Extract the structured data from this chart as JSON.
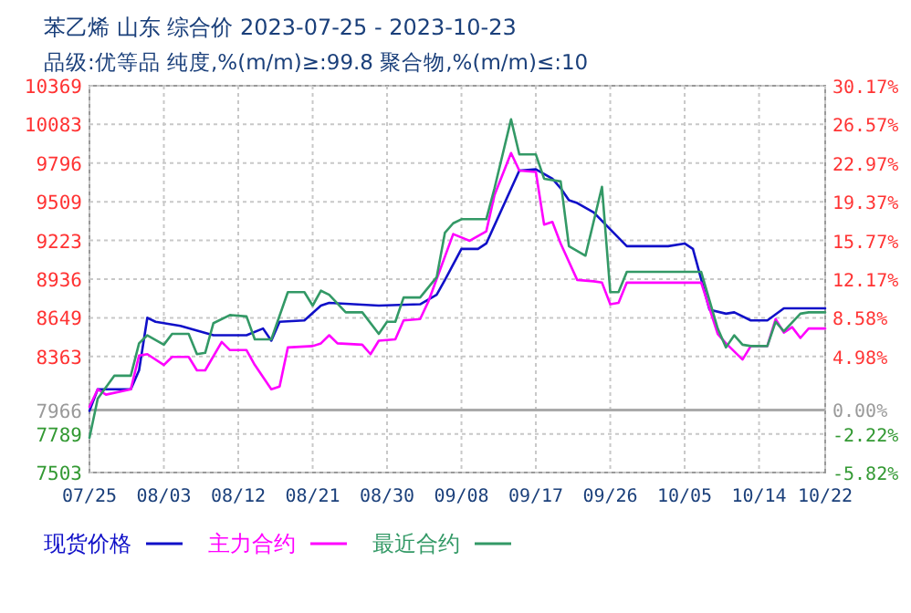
{
  "chart_data": {
    "type": "line",
    "title": "苯乙烯 山东 综合价 2023-07-25 - 2023-10-23",
    "subtitle": "品级:优等品 纯度,%(m/m)≥:99.8 聚合物,%(m/m)≤:10",
    "xlim": [
      "2023-07-25",
      "2023-10-22"
    ],
    "xticks": [
      {
        "value": "2023-07-25",
        "label": "07/25"
      },
      {
        "value": "2023-08-03",
        "label": "08/03"
      },
      {
        "value": "2023-08-12",
        "label": "08/12"
      },
      {
        "value": "2023-08-21",
        "label": "08/21"
      },
      {
        "value": "2023-08-30",
        "label": "08/30"
      },
      {
        "value": "2023-09-08",
        "label": "09/08"
      },
      {
        "value": "2023-09-17",
        "label": "09/17"
      },
      {
        "value": "2023-09-26",
        "label": "09/26"
      },
      {
        "value": "2023-10-05",
        "label": "10/05"
      },
      {
        "value": "2023-10-14",
        "label": "10/14"
      },
      {
        "value": "2023-10-22",
        "label": "10/22"
      }
    ],
    "ylim": [
      7503,
      10369
    ],
    "yticks": [
      7503,
      7789,
      7966,
      8363,
      8649,
      8936,
      9223,
      9509,
      9796,
      10083,
      10369
    ],
    "y2lim": [
      -5.82,
      30.17
    ],
    "y2ticks": [
      {
        "value": -5.82,
        "label": "-5.82%"
      },
      {
        "value": -2.22,
        "label": "-2.22%"
      },
      {
        "value": 0,
        "label": "0.00%"
      },
      {
        "value": 4.98,
        "label": "4.98%"
      },
      {
        "value": 8.58,
        "label": "8.58%"
      },
      {
        "value": 12.17,
        "label": "12.17%"
      },
      {
        "value": 15.77,
        "label": "15.77%"
      },
      {
        "value": 19.37,
        "label": "19.37%"
      },
      {
        "value": 22.97,
        "label": "22.97%"
      },
      {
        "value": 26.57,
        "label": "26.57%"
      },
      {
        "value": 30.17,
        "label": "30.17%"
      }
    ],
    "ref_lines": [
      {
        "axis": "y",
        "value": 7966,
        "color": "#aaaaaa"
      }
    ],
    "grid": true,
    "legend": "bottom",
    "line_style": "solid",
    "marker": "none",
    "series": [
      {
        "name": "现货价格",
        "color": "#1010c8",
        "x": [
          "2023-07-25",
          "2023-07-26",
          "2023-07-30",
          "2023-07-31",
          "2023-08-01",
          "2023-08-02",
          "2023-08-05",
          "2023-08-09",
          "2023-08-13",
          "2023-08-15",
          "2023-08-16",
          "2023-08-17",
          "2023-08-20",
          "2023-08-22",
          "2023-08-23",
          "2023-08-29",
          "2023-09-03",
          "2023-09-05",
          "2023-09-06",
          "2023-09-08",
          "2023-09-10",
          "2023-09-11",
          "2023-09-15",
          "2023-09-17",
          "2023-09-19",
          "2023-09-20",
          "2023-09-21",
          "2023-09-22",
          "2023-09-24",
          "2023-09-28",
          "2023-10-03",
          "2023-10-05",
          "2023-10-06",
          "2023-10-08",
          "2023-10-10",
          "2023-10-11",
          "2023-10-13",
          "2023-10-15",
          "2023-10-17",
          "2023-10-22"
        ],
        "values": [
          7960,
          8120,
          8120,
          8260,
          8650,
          8620,
          8590,
          8520,
          8520,
          8570,
          8480,
          8620,
          8630,
          8740,
          8760,
          8740,
          8750,
          8820,
          8930,
          9160,
          9160,
          9200,
          9740,
          9750,
          9680,
          9610,
          9520,
          9500,
          9430,
          9180,
          9180,
          9200,
          9160,
          8710,
          8680,
          8690,
          8630,
          8630,
          8720,
          8720
        ]
      },
      {
        "name": "主力合约",
        "color": "#ff00ff",
        "x": [
          "2023-07-25",
          "2023-07-26",
          "2023-07-27",
          "2023-07-30",
          "2023-07-31",
          "2023-08-01",
          "2023-08-03",
          "2023-08-04",
          "2023-08-06",
          "2023-08-07",
          "2023-08-08",
          "2023-08-10",
          "2023-08-11",
          "2023-08-13",
          "2023-08-14",
          "2023-08-16",
          "2023-08-17",
          "2023-08-18",
          "2023-08-21",
          "2023-08-22",
          "2023-08-23",
          "2023-08-24",
          "2023-08-27",
          "2023-08-28",
          "2023-08-29",
          "2023-08-31",
          "2023-09-01",
          "2023-09-03",
          "2023-09-04",
          "2023-09-07",
          "2023-09-09",
          "2023-09-11",
          "2023-09-12",
          "2023-09-14",
          "2023-09-15",
          "2023-09-17",
          "2023-09-18",
          "2023-09-19",
          "2023-09-20",
          "2023-09-22",
          "2023-09-24",
          "2023-09-25",
          "2023-09-26",
          "2023-09-27",
          "2023-09-28",
          "2023-10-07",
          "2023-10-09",
          "2023-10-10",
          "2023-10-12",
          "2023-10-13",
          "2023-10-15",
          "2023-10-16",
          "2023-10-17",
          "2023-10-18",
          "2023-10-19",
          "2023-10-20",
          "2023-10-22"
        ],
        "values": [
          7990,
          8120,
          8080,
          8120,
          8370,
          8380,
          8300,
          8360,
          8360,
          8260,
          8260,
          8470,
          8410,
          8410,
          8300,
          8120,
          8140,
          8430,
          8440,
          8460,
          8520,
          8460,
          8450,
          8380,
          8480,
          8490,
          8630,
          8640,
          8770,
          9270,
          9220,
          9290,
          9560,
          9870,
          9740,
          9730,
          9340,
          9360,
          9200,
          8930,
          8920,
          8910,
          8750,
          8760,
          8910,
          8910,
          8530,
          8460,
          8340,
          8440,
          8440,
          8640,
          8540,
          8580,
          8500,
          8570,
          8570
        ]
      },
      {
        "name": "最近合约",
        "color": "#339966",
        "x": [
          "2023-07-25",
          "2023-07-26",
          "2023-07-28",
          "2023-07-30",
          "2023-07-31",
          "2023-08-01",
          "2023-08-03",
          "2023-08-04",
          "2023-08-06",
          "2023-08-07",
          "2023-08-08",
          "2023-08-09",
          "2023-08-11",
          "2023-08-13",
          "2023-08-14",
          "2023-08-16",
          "2023-08-18",
          "2023-08-20",
          "2023-08-21",
          "2023-08-22",
          "2023-08-23",
          "2023-08-25",
          "2023-08-27",
          "2023-08-29",
          "2023-08-30",
          "2023-08-31",
          "2023-09-01",
          "2023-09-03",
          "2023-09-05",
          "2023-09-06",
          "2023-09-07",
          "2023-09-08",
          "2023-09-11",
          "2023-09-12",
          "2023-09-14",
          "2023-09-15",
          "2023-09-17",
          "2023-09-18",
          "2023-09-20",
          "2023-09-21",
          "2023-09-23",
          "2023-09-25",
          "2023-09-26",
          "2023-09-27",
          "2023-09-28",
          "2023-10-07",
          "2023-10-09",
          "2023-10-10",
          "2023-10-11",
          "2023-10-12",
          "2023-10-13",
          "2023-10-15",
          "2023-10-16",
          "2023-10-17",
          "2023-10-19",
          "2023-10-20",
          "2023-10-22"
        ],
        "values": [
          7760,
          8050,
          8220,
          8220,
          8460,
          8520,
          8450,
          8530,
          8530,
          8380,
          8390,
          8610,
          8670,
          8660,
          8490,
          8490,
          8840,
          8840,
          8740,
          8850,
          8820,
          8690,
          8690,
          8530,
          8620,
          8620,
          8800,
          8800,
          8950,
          9280,
          9350,
          9380,
          9380,
          9610,
          10120,
          9860,
          9860,
          9680,
          9660,
          9180,
          9110,
          9620,
          8840,
          8840,
          8990,
          8990,
          8570,
          8430,
          8520,
          8450,
          8440,
          8440,
          8620,
          8550,
          8680,
          8690,
          8690
        ]
      }
    ]
  }
}
